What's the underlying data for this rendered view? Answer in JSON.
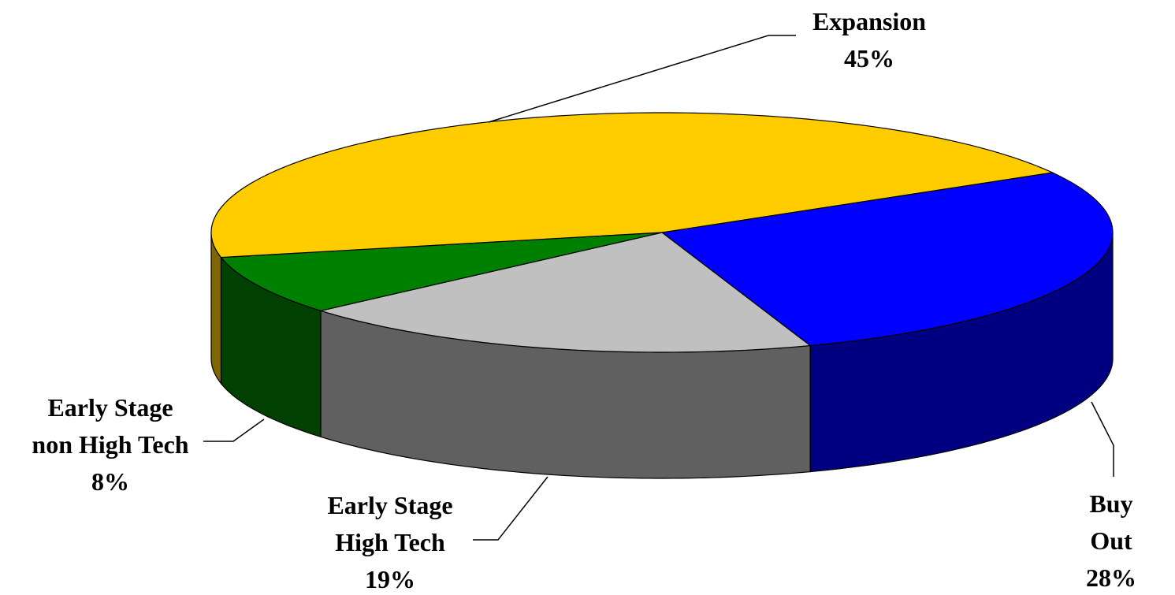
{
  "chart_data": {
    "type": "pie",
    "categories": [
      "Buy Out",
      "Early Stage\nHigh Tech",
      "Early Stage\nnon High Tech",
      "Expansion"
    ],
    "values": [
      28,
      19,
      8,
      45
    ],
    "value_labels": [
      "28%",
      "19%",
      "8%",
      "45%"
    ],
    "colors": [
      "#0000ff",
      "#c0c0c0",
      "#008000",
      "#ffcc00"
    ],
    "three_d": true
  }
}
